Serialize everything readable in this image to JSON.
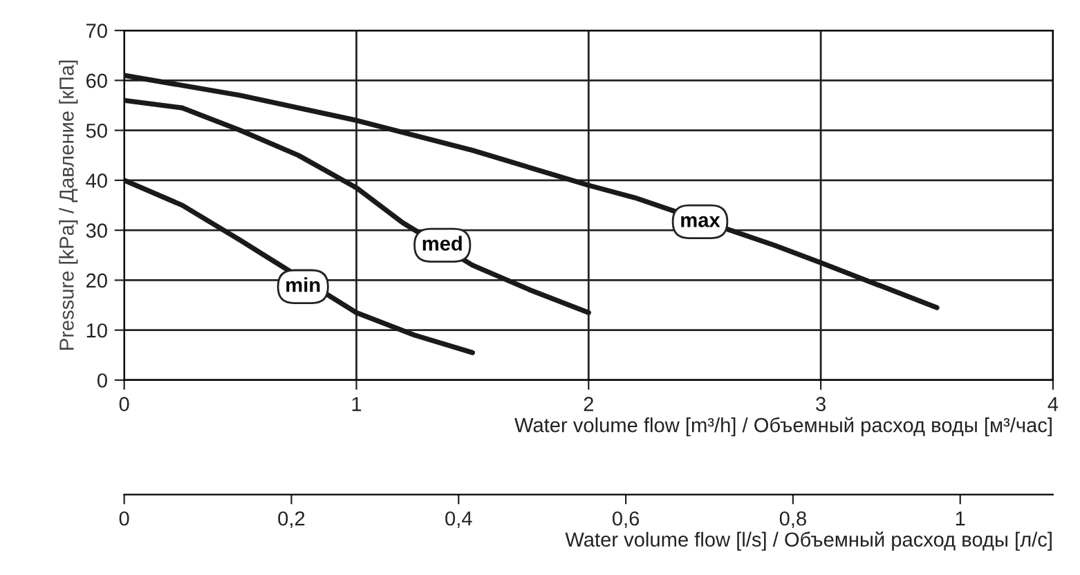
{
  "chart_data": {
    "type": "line",
    "xlabel": "Water volume flow [m³/h] / Объемный расход воды [м³/час]",
    "ylabel": "Pressure [kPa] / Давление [кПа]",
    "x2label": "Water volume flow [l/s] / Объемный расход воды [л/с]",
    "xlim": [
      0,
      4
    ],
    "xticks": [
      0,
      1,
      2,
      3,
      4
    ],
    "ylim": [
      0,
      70
    ],
    "yticks": [
      0,
      10,
      20,
      30,
      40,
      50,
      60,
      70
    ],
    "x2lim": [
      0,
      1.111
    ],
    "x2ticks": [
      0,
      {
        "value": 0.2,
        "label": "0,2"
      },
      {
        "value": 0.4,
        "label": "0,4"
      },
      {
        "value": 0.6,
        "label": "0,6"
      },
      {
        "value": 0.8,
        "label": "0,8"
      },
      1
    ],
    "grid": true,
    "legend": false,
    "marker": "none",
    "line_style": "solid",
    "series": [
      {
        "color": "#1a1a1a",
        "x": [
          0,
          0.5,
          1,
          1.5,
          2,
          2.2,
          2.8,
          3,
          3.5
        ],
        "values": [
          61,
          57,
          52,
          46,
          39,
          36.5,
          27,
          23.5,
          14.5
        ]
      },
      {
        "color": "#1a1a1a",
        "x": [
          0,
          0.25,
          0.5,
          0.75,
          1,
          1.2,
          1.5,
          1.75,
          2
        ],
        "values": [
          56,
          54.5,
          50,
          45,
          38.5,
          31.5,
          23,
          18,
          13.5
        ]
      },
      {
        "color": "#1a1a1a",
        "x": [
          0,
          0.25,
          0.5,
          0.62,
          1,
          1.25,
          1.5
        ],
        "values": [
          40,
          35,
          28,
          24.5,
          13.5,
          9,
          5.5
        ]
      }
    ],
    "annotations": [
      {
        "text": "max",
        "x": 2.48,
        "y": 31.7
      },
      {
        "text": "med",
        "x": 1.37,
        "y": 27
      },
      {
        "text": "min",
        "x": 0.77,
        "y": 18.7
      }
    ]
  }
}
